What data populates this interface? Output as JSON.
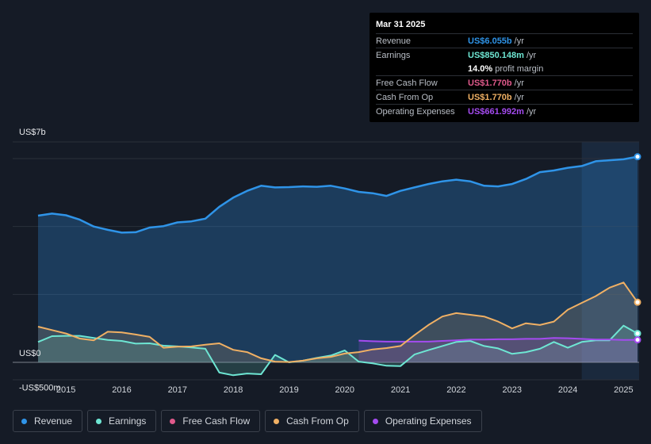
{
  "tooltip": {
    "date": "Mar 31 2025",
    "rows": [
      {
        "label": "Revenue",
        "value": "US$6.055b",
        "unit": "/yr",
        "color": "#2f94e8"
      },
      {
        "label": "Earnings",
        "value": "US$850.148m",
        "unit": "/yr",
        "color": "#6ee6d3"
      },
      {
        "label": "",
        "value": "14.0%",
        "unit": "profit margin",
        "color": "#ffffff"
      },
      {
        "label": "Free Cash Flow",
        "value": "US$1.770b",
        "unit": "/yr",
        "color": "#e05a8c"
      },
      {
        "label": "Cash From Op",
        "value": "US$1.770b",
        "unit": "/yr",
        "color": "#f0b064"
      },
      {
        "label": "Operating Expenses",
        "value": "US$661.992m",
        "unit": "/yr",
        "color": "#a44bf0"
      }
    ]
  },
  "legend": [
    {
      "label": "Revenue",
      "color": "#2f94e8"
    },
    {
      "label": "Earnings",
      "color": "#6ee6d3"
    },
    {
      "label": "Free Cash Flow",
      "color": "#e05a8c"
    },
    {
      "label": "Cash From Op",
      "color": "#f0b064"
    },
    {
      "label": "Operating Expenses",
      "color": "#a44bf0"
    }
  ],
  "chart_data": {
    "type": "area",
    "title": "",
    "ylabel_top": "US$7b",
    "y_tick_labels": [
      {
        "label": "US$0",
        "value": 0
      },
      {
        "label": "-US$500m",
        "value": -500
      }
    ],
    "ylim": [
      -500,
      7000
    ],
    "x_ticks": [
      2015,
      2016,
      2017,
      2018,
      2019,
      2020,
      2021,
      2022,
      2023,
      2024,
      2025
    ],
    "xlim": [
      2014.5,
      2025.25
    ],
    "highlight_from": 2024.25,
    "series": [
      {
        "name": "Revenue",
        "color": "#2f94e8",
        "x": [
          2014.5,
          2014.75,
          2015.0,
          2015.25,
          2015.5,
          2015.75,
          2016.0,
          2016.25,
          2016.5,
          2016.75,
          2017.0,
          2017.25,
          2017.5,
          2017.75,
          2018.0,
          2018.25,
          2018.5,
          2018.75,
          2019.0,
          2019.25,
          2019.5,
          2019.75,
          2020.0,
          2020.25,
          2020.5,
          2020.75,
          2021.0,
          2021.25,
          2021.5,
          2021.75,
          2022.0,
          2022.25,
          2022.5,
          2022.75,
          2023.0,
          2023.25,
          2023.5,
          2023.75,
          2024.0,
          2024.25,
          2024.5,
          2024.75,
          2025.0,
          2025.25
        ],
        "values": [
          4320,
          4380,
          4330,
          4200,
          4000,
          3900,
          3820,
          3830,
          3970,
          4010,
          4120,
          4150,
          4230,
          4580,
          4850,
          5050,
          5200,
          5150,
          5160,
          5180,
          5170,
          5200,
          5120,
          5020,
          4980,
          4900,
          5050,
          5150,
          5250,
          5330,
          5380,
          5330,
          5200,
          5180,
          5250,
          5400,
          5600,
          5650,
          5730,
          5780,
          5920,
          5950,
          5980,
          6055
        ]
      },
      {
        "name": "Earnings",
        "color": "#6ee6d3",
        "x": [
          2014.5,
          2014.75,
          2015.0,
          2015.25,
          2015.5,
          2015.75,
          2016.0,
          2016.25,
          2016.5,
          2016.75,
          2017.0,
          2017.25,
          2017.5,
          2017.75,
          2018.0,
          2018.25,
          2018.5,
          2018.75,
          2019.0,
          2019.25,
          2019.5,
          2019.75,
          2020.0,
          2020.25,
          2020.5,
          2020.75,
          2021.0,
          2021.25,
          2021.5,
          2021.75,
          2022.0,
          2022.25,
          2022.5,
          2022.75,
          2023.0,
          2023.25,
          2023.5,
          2023.75,
          2024.0,
          2024.25,
          2024.5,
          2024.75,
          2025.0,
          2025.25
        ],
        "values": [
          600,
          770,
          780,
          780,
          720,
          660,
          630,
          550,
          560,
          490,
          470,
          440,
          400,
          -300,
          -380,
          -330,
          -350,
          220,
          0,
          50,
          130,
          200,
          350,
          20,
          -30,
          -100,
          -110,
          230,
          360,
          480,
          600,
          630,
          480,
          410,
          250,
          300,
          400,
          600,
          430,
          600,
          650,
          650,
          1080,
          850
        ]
      },
      {
        "name": "Operating Expenses",
        "color": "#a44bf0",
        "x": [
          2020.25,
          2020.5,
          2020.75,
          2021.0,
          2021.25,
          2021.5,
          2021.75,
          2022.0,
          2022.25,
          2022.5,
          2022.75,
          2023.0,
          2023.25,
          2023.5,
          2023.75,
          2024.0,
          2024.25,
          2024.5,
          2024.75,
          2025.0,
          2025.25
        ],
        "values": [
          640,
          620,
          610,
          610,
          610,
          610,
          630,
          650,
          670,
          670,
          680,
          680,
          690,
          690,
          720,
          710,
          690,
          670,
          670,
          660,
          662
        ]
      },
      {
        "name": "Cash From Op",
        "color": "#f0b064",
        "x": [
          2014.5,
          2014.75,
          2015.0,
          2015.25,
          2015.5,
          2015.75,
          2016.0,
          2016.25,
          2016.5,
          2016.75,
          2017.0,
          2017.25,
          2017.5,
          2017.75,
          2018.0,
          2018.25,
          2018.5,
          2018.75,
          2019.0,
          2019.25,
          2019.5,
          2019.75,
          2020.0,
          2020.25,
          2020.5,
          2020.75,
          2021.0,
          2021.25,
          2021.5,
          2021.75,
          2022.0,
          2022.25,
          2022.5,
          2022.75,
          2023.0,
          2023.25,
          2023.5,
          2023.75,
          2024.0,
          2024.25,
          2024.5,
          2024.75,
          2025.0,
          2025.25
        ],
        "values": [
          1050,
          950,
          850,
          700,
          650,
          900,
          880,
          820,
          750,
          430,
          460,
          470,
          520,
          560,
          370,
          300,
          120,
          20,
          10,
          50,
          120,
          160,
          260,
          300,
          380,
          420,
          480,
          800,
          1100,
          1350,
          1450,
          1400,
          1350,
          1200,
          1000,
          1150,
          1100,
          1200,
          1550,
          1750,
          1950,
          2200,
          2350,
          1770
        ]
      },
      {
        "name": "Free Cash Flow",
        "color": "#e05a8c",
        "x": [
          2014.5,
          2014.75,
          2015.0,
          2015.25,
          2015.5,
          2015.75,
          2016.0,
          2016.25,
          2016.5,
          2016.75,
          2017.0,
          2017.25,
          2017.5,
          2017.75,
          2018.0,
          2018.25,
          2018.5,
          2018.75,
          2019.0,
          2019.25,
          2019.5,
          2019.75,
          2020.0,
          2020.25,
          2020.5,
          2020.75,
          2021.0,
          2021.25,
          2021.5,
          2021.75,
          2022.0,
          2022.25,
          2022.5,
          2022.75,
          2023.0,
          2023.25,
          2023.5,
          2023.75,
          2024.0,
          2024.25,
          2024.5,
          2024.75,
          2025.0,
          2025.25
        ],
        "values": [
          1050,
          950,
          850,
          700,
          650,
          900,
          880,
          820,
          750,
          430,
          460,
          470,
          520,
          560,
          370,
          300,
          120,
          20,
          10,
          50,
          120,
          160,
          260,
          300,
          380,
          420,
          480,
          800,
          1100,
          1350,
          1450,
          1400,
          1350,
          1200,
          1000,
          1150,
          1100,
          1200,
          1550,
          1750,
          1950,
          2200,
          2350,
          1770
        ]
      }
    ]
  }
}
